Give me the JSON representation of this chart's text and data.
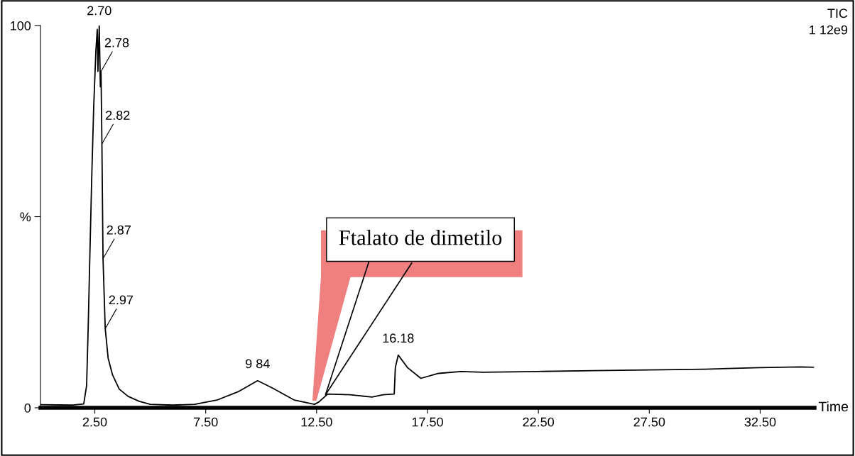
{
  "chart_data": {
    "type": "line",
    "xlabel": "Time",
    "x": [
      0.05,
      1.5,
      2.0,
      2.13,
      2.2,
      2.26,
      2.36,
      2.45,
      2.55,
      2.61,
      2.64,
      2.7,
      2.75,
      2.78,
      2.82,
      2.87,
      2.97,
      3.1,
      3.3,
      3.6,
      4.0,
      4.5,
      5.0,
      6.0,
      7.0,
      8.0,
      9.0,
      9.84,
      10.5,
      11.5,
      12.4,
      12.6,
      13.0,
      14.0,
      15.0,
      15.5,
      16.0,
      16.05,
      16.18,
      16.6,
      17.2,
      18.0,
      19.0,
      20.0,
      22.5,
      25.0,
      27.5,
      30.0,
      32.5,
      34.3,
      34.9
    ],
    "series": [
      {
        "color": "#000000",
        "values": [
          0.8,
          0.7,
          1,
          5.8,
          20.7,
          35.7,
          60,
          78.7,
          93.6,
          99,
          88,
          100,
          84,
          88,
          69,
          39,
          20.7,
          13,
          8.6,
          4.9,
          3,
          1.7,
          0.9,
          0.7,
          0.9,
          2,
          4.3,
          7.1,
          5.2,
          2,
          0.9,
          1.5,
          3.6,
          3.4,
          2.8,
          3.4,
          3.6,
          10.5,
          13.8,
          10.5,
          7.7,
          9,
          9.5,
          9.3,
          9.5,
          9.7,
          9.9,
          10.1,
          10.5,
          10.7,
          10.6
        ]
      }
    ],
    "xlim": [
      0.05,
      34.95
    ],
    "ylim": [
      0,
      100
    ],
    "xticks": [
      {
        "value": 2.5,
        "label": "2.50"
      },
      {
        "value": 7.5,
        "label": "7.50"
      },
      {
        "value": 12.5,
        "label": "12.50"
      },
      {
        "value": 17.5,
        "label": "17.50"
      },
      {
        "value": 22.5,
        "label": "22.50"
      },
      {
        "value": 27.5,
        "label": "27.50"
      },
      {
        "value": 32.5,
        "label": "32.50"
      }
    ],
    "yticks": [
      0,
      {
        "value": 50,
        "label": "%"
      },
      100
    ],
    "annotations": [
      {
        "text": "2.70",
        "x": 2.7,
        "y": 100
      },
      {
        "text": "2.78",
        "x": 2.78,
        "y": 88
      },
      {
        "text": "2.82",
        "x": 2.82,
        "y": 69
      },
      {
        "text": "2.87",
        "x": 2.87,
        "y": 39
      },
      {
        "text": "2.97",
        "x": 2.97,
        "y": 20.7
      },
      {
        "text": "9 84",
        "x": 9.84,
        "y": 7.1
      },
      {
        "text": "16.18",
        "x": 16.18,
        "y": 13.8
      },
      {
        "text": "Ftalato de dimetilo",
        "x": 12.9,
        "y": 3.4
      },
      "TIC",
      "1 12e9"
    ],
    "grid": false,
    "legend": false,
    "marker": "none",
    "line_style": "solid"
  }
}
